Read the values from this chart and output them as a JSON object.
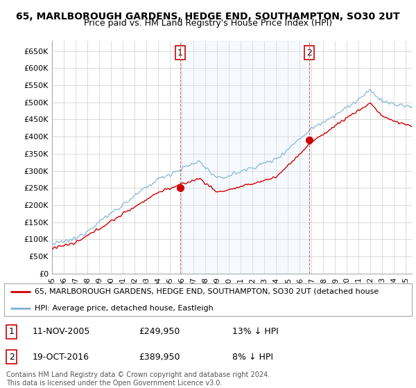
{
  "title1": "65, MARLBOROUGH GARDENS, HEDGE END, SOUTHAMPTON, SO30 2UT",
  "title2": "Price paid vs. HM Land Registry's House Price Index (HPI)",
  "ylabel_ticks": [
    "£0",
    "£50K",
    "£100K",
    "£150K",
    "£200K",
    "£250K",
    "£300K",
    "£350K",
    "£400K",
    "£450K",
    "£500K",
    "£550K",
    "£600K",
    "£650K"
  ],
  "ylim": [
    0,
    680000
  ],
  "yticks": [
    0,
    50000,
    100000,
    150000,
    200000,
    250000,
    300000,
    350000,
    400000,
    450000,
    500000,
    550000,
    600000,
    650000
  ],
  "xmin": 1995.0,
  "xmax": 2025.5,
  "sale1_x": 2005.87,
  "sale1_y": 249950,
  "sale2_x": 2016.8,
  "sale2_y": 389950,
  "vline1_x": 2005.87,
  "vline2_x": 2016.8,
  "red_line_color": "#cc0000",
  "blue_line_color": "#7bafd4",
  "blue_fill_color": "#ddeeff",
  "marker_color": "#cc0000",
  "grid_color": "#cccccc",
  "background_color": "#ffffff",
  "legend_label_red": "65, MARLBOROUGH GARDENS, HEDGE END, SOUTHAMPTON, SO30 2UT (detached house",
  "legend_label_blue": "HPI: Average price, detached house, Eastleigh",
  "table_row1": [
    "1",
    "11-NOV-2005",
    "£249,950",
    "13% ↓ HPI"
  ],
  "table_row2": [
    "2",
    "19-OCT-2016",
    "£389,950",
    "8% ↓ HPI"
  ],
  "footer": "Contains HM Land Registry data © Crown copyright and database right 2024.\nThis data is licensed under the Open Government Licence v3.0.",
  "title1_fontsize": 10,
  "title2_fontsize": 9
}
